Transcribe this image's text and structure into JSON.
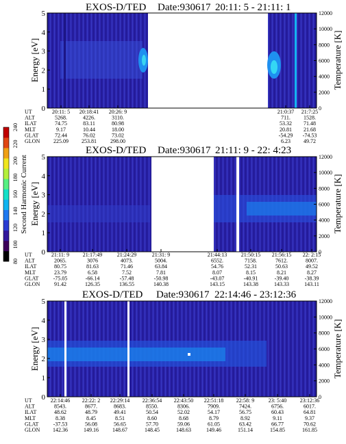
{
  "chart_data": [
    {
      "type": "heatmap",
      "title_parts": [
        "EXOS-D/TED",
        "Date:930617",
        "20:11: 5 - 21:11: 1"
      ],
      "ylabel": "Energy [eV]",
      "y2label": "Temperature [K]",
      "ylim": [
        0,
        5
      ],
      "y_ticks": [
        "0",
        "1",
        "2",
        "3",
        "4",
        "5"
      ],
      "y2lim": [
        0,
        12000
      ],
      "y2_ticks": [
        "0",
        "2000",
        "4000",
        "6000",
        "8000",
        "10000",
        "12000"
      ],
      "data_gaps_ut": [
        [
          "20:27",
          "20:59"
        ]
      ],
      "ephemeris": {
        "labels": [
          "UT",
          "ALT",
          "ILAT",
          "MLT",
          "GLAT",
          "GLON"
        ],
        "columns": [
          [
            "20:11: 5",
            "5268.",
            "74.75",
            "9.17",
            "72.44",
            "225.09"
          ],
          [
            "20:18:41",
            "4226.",
            "83.11",
            "10.44",
            "76.02",
            "253.81"
          ],
          [
            "20:26: 9",
            "3110.",
            "80.98",
            "18.00",
            "73.02",
            "298.00"
          ],
          [
            "21:0:37",
            "711.",
            "53.32",
            "20.81",
            "-54.29",
            "6.23"
          ],
          [
            "21:7:25",
            "1528.",
            "71.48",
            "21.68",
            "-74.53",
            "49.72"
          ]
        ]
      }
    },
    {
      "type": "heatmap",
      "title_parts": [
        "EXOS-D/TED",
        "Date:930617",
        "21:11: 9 - 22: 4:23"
      ],
      "ylabel": "Energy [eV]",
      "y2label": "Temperature [K]",
      "ylim": [
        0,
        5
      ],
      "y_ticks": [
        "0",
        "1",
        "2",
        "3",
        "4",
        "5"
      ],
      "y2lim": [
        0,
        12000
      ],
      "y2_ticks": [
        "0",
        "2000",
        "4000",
        "6000",
        "8000",
        "10000",
        "12000"
      ],
      "data_gaps_ut": [
        [
          "21:31",
          "21:43"
        ]
      ],
      "ephemeris": {
        "labels": [
          "UT",
          "ALT",
          "ILAT",
          "MLT",
          "GLAT",
          "GLON"
        ],
        "columns": [
          [
            "21:11: 9",
            "2065.",
            "80.75",
            "23.79",
            "-75.05",
            "91.42"
          ],
          [
            "21:17:49",
            "3076",
            "81.63",
            "6.58",
            "-66.14",
            "126.35"
          ],
          [
            "21:24:29",
            "4073.",
            "71.46",
            "7.52",
            "-57.48",
            "136.55"
          ],
          [
            "21:31: 9",
            "5004.",
            "63.84",
            "7.81",
            "-50.98",
            "140.38"
          ],
          [
            "21:44:13",
            "6552.",
            "54.76",
            "8.07",
            "-43.07",
            "143.15"
          ],
          [
            "21:50:15",
            "7158.",
            "52.31",
            "8.15",
            "-40.91",
            "143.38"
          ],
          [
            "21:56:15",
            "7612.",
            "50.63",
            "8.21",
            "-39.40",
            "143.33"
          ],
          [
            "22: 2:15",
            "8007.",
            "49.52",
            "8.27",
            "-38.39",
            "143.11"
          ]
        ]
      }
    },
    {
      "type": "heatmap",
      "title_parts": [
        "EXOS-D/TED",
        "Date:930617",
        "22:14:46 - 23:12:36"
      ],
      "ylabel": "Energy [eV]",
      "y2label": "Temperature [K]",
      "ylim": [
        0,
        5
      ],
      "y_ticks": [
        "0",
        "1",
        "2",
        "3",
        "4",
        "5"
      ],
      "y2lim": [
        0,
        12000
      ],
      "y2_ticks": [
        "0",
        "2000",
        "4000",
        "6000",
        "8000",
        "10000",
        "12000"
      ],
      "ephemeris": {
        "labels": [
          "UT",
          "ALT",
          "ILAT",
          "MLT",
          "GLAT",
          "GLON"
        ],
        "columns": [
          [
            "22:14:46",
            "8543.",
            "48.62",
            "8.38",
            "-37.53",
            "142.36"
          ],
          [
            "22:22: 2",
            "8677.",
            "48.79",
            "8.45",
            "56.08",
            "149.16"
          ],
          [
            "22:29:14",
            "8683.",
            "49.41",
            "8.51",
            "56.65",
            "148.67"
          ],
          [
            "22:36:54",
            "8550.",
            "50.54",
            "8.60",
            "57.70",
            "148.45"
          ],
          [
            "22:43:50",
            "8306.",
            "52.02",
            "8.68",
            "59.06",
            "148.63"
          ],
          [
            "22:51:18",
            "7909.",
            "54.17",
            "8.79",
            "61.05",
            "149.46"
          ],
          [
            "22:58: 9",
            "7424.",
            "56.75",
            "8.92",
            "63.42",
            "151.14"
          ],
          [
            "23: 5:40",
            "6756.",
            "60.43",
            "9.11",
            "66.77",
            "154.85"
          ],
          [
            "23:12:36",
            "6017.",
            "64.81",
            "9.37",
            "70.62",
            "161.85"
          ]
        ]
      }
    }
  ],
  "colorbar": {
    "label": "Second Harmonic Current",
    "ticks": [
      "80",
      "100",
      "120",
      "140",
      "160",
      "180",
      "200",
      "220",
      "240"
    ],
    "colors": [
      "#000000",
      "#3c005a",
      "#32189c",
      "#2a3cd2",
      "#1e78f0",
      "#10b4f0",
      "#14e0c8",
      "#56f082",
      "#b4f03c",
      "#f0e61e",
      "#f0a014",
      "#e04614",
      "#c00000"
    ]
  }
}
